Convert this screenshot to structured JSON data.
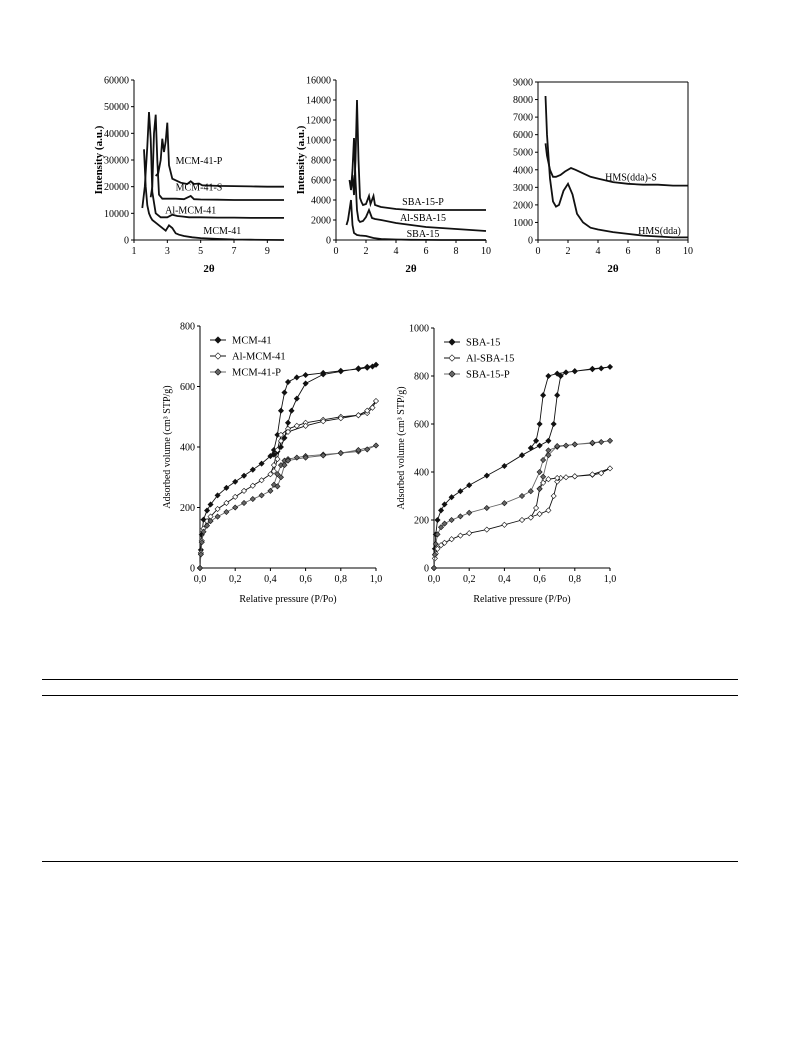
{
  "chart_data": [
    {
      "type": "line",
      "xlabel": "2θ",
      "ylabel": "Intensity (a.u.)",
      "xlim": [
        1,
        10
      ],
      "ylim": [
        0,
        60000
      ],
      "xticks": [
        1,
        3,
        5,
        7,
        9
      ],
      "xtick_labels": [
        "1",
        "3",
        "5",
        "7",
        "9"
      ],
      "yticks": [
        0,
        10000,
        20000,
        30000,
        40000,
        50000,
        60000
      ],
      "ytick_labels": [
        "0",
        "10000",
        "20000",
        "30000",
        "40000",
        "50000",
        "60000"
      ],
      "grid": false,
      "series": [
        {
          "name": "MCM-41-P",
          "label_pos": [
            4.9,
            28500
          ],
          "x": [
            2.3,
            2.45,
            2.6,
            2.7,
            2.8,
            2.9,
            3.0,
            3.1,
            3.3,
            3.8,
            4.2,
            4.4,
            4.6,
            4.9,
            5.1,
            6,
            7,
            8,
            9,
            10
          ],
          "y": [
            24000,
            25000,
            30000,
            38000,
            33000,
            37000,
            44000,
            28000,
            23000,
            21500,
            21000,
            22000,
            21000,
            21200,
            20500,
            20300,
            20200,
            20100,
            20000,
            20000
          ]
        },
        {
          "name": "MCM-41-S",
          "label_pos": [
            4.9,
            18500
          ],
          "x": [
            2.0,
            2.1,
            2.2,
            2.3,
            2.4,
            2.5,
            2.7,
            3.0,
            3.5,
            4.0,
            4.4,
            4.6,
            5.0,
            6,
            7,
            8,
            9,
            10
          ],
          "y": [
            16000,
            20000,
            40000,
            47000,
            30000,
            17000,
            15500,
            15500,
            15500,
            15300,
            16500,
            15300,
            15200,
            15100,
            15000,
            15000,
            15000,
            15000
          ]
        },
        {
          "name": "Al-MCM-41",
          "label_pos": [
            4.4,
            10000
          ],
          "x": [
            1.5,
            1.65,
            1.8,
            1.9,
            2.0,
            2.1,
            2.3,
            2.6,
            3.0,
            3.3,
            3.6,
            3.9,
            4.3,
            5,
            6,
            7,
            8,
            9,
            10
          ],
          "y": [
            12000,
            20000,
            35000,
            48000,
            38000,
            18000,
            10000,
            8500,
            8500,
            9500,
            9000,
            8800,
            8500,
            8500,
            8400,
            8400,
            8300,
            8300,
            8300
          ]
        },
        {
          "name": "MCM-41",
          "label_pos": [
            6.3,
            2200
          ],
          "x": [
            1.6,
            1.7,
            1.8,
            1.9,
            2.0,
            2.1,
            2.3,
            2.6,
            2.9,
            3.1,
            3.3,
            3.5,
            3.7,
            4.0,
            4.5,
            5,
            6,
            7,
            8,
            9,
            10
          ],
          "y": [
            34000,
            20000,
            13000,
            10000,
            8500,
            7500,
            6500,
            5000,
            3500,
            5500,
            4500,
            2500,
            2000,
            1500,
            1000,
            700,
            400,
            200,
            100,
            50,
            0
          ]
        }
      ]
    },
    {
      "type": "line",
      "xlabel": "2θ",
      "ylabel": "Intensity (a.u.)",
      "xlim": [
        0,
        10
      ],
      "ylim": [
        0,
        16000
      ],
      "xticks": [
        0,
        2,
        4,
        6,
        8,
        10
      ],
      "xtick_labels": [
        "0",
        "2",
        "4",
        "6",
        "8",
        "10"
      ],
      "yticks": [
        0,
        2000,
        4000,
        6000,
        8000,
        10000,
        12000,
        14000,
        16000
      ],
      "ytick_labels": [
        "0",
        "2000",
        "4000",
        "6000",
        "8000",
        "10000",
        "12000",
        "14000",
        "16000"
      ],
      "grid": false,
      "series": [
        {
          "name": "SBA-15-P",
          "label_pos": [
            5.8,
            3500
          ],
          "x": [
            1.0,
            1.1,
            1.2,
            1.3,
            1.4,
            1.5,
            1.6,
            1.7,
            1.8,
            2.0,
            2.2,
            2.3,
            2.5,
            2.6,
            2.8,
            3,
            4,
            5,
            6,
            7,
            8,
            9,
            10
          ],
          "y": [
            5000,
            6500,
            4500,
            8000,
            14000,
            8000,
            4200,
            3800,
            3500,
            3600,
            4400,
            3600,
            4400,
            3500,
            3400,
            3300,
            3100,
            3000,
            3000,
            3000,
            3000,
            3000,
            3000
          ]
        },
        {
          "name": "Al-SBA-15",
          "label_pos": [
            5.8,
            1900
          ],
          "x": [
            0.9,
            1.0,
            1.1,
            1.2,
            1.3,
            1.4,
            1.5,
            1.6,
            1.8,
            2.0,
            2.2,
            2.4,
            2.6,
            3,
            4,
            5,
            6,
            7,
            8,
            9,
            10
          ],
          "y": [
            6000,
            5000,
            7000,
            10200,
            6000,
            3000,
            2000,
            1800,
            1900,
            2300,
            3000,
            2200,
            2100,
            2000,
            1700,
            1500,
            1300,
            1200,
            1100,
            1000,
            900
          ]
        },
        {
          "name": "SBA-15",
          "label_pos": [
            5.8,
            300
          ],
          "x": [
            0.7,
            0.8,
            0.9,
            1.0,
            1.1,
            1.2,
            1.4,
            1.6,
            2.0,
            2.5,
            3,
            4,
            5,
            6,
            7,
            8,
            9,
            10
          ],
          "y": [
            1500,
            2000,
            3000,
            4000,
            1500,
            700,
            500,
            450,
            400,
            200,
            100,
            50,
            20,
            10,
            0,
            0,
            0,
            0
          ]
        }
      ]
    },
    {
      "type": "line",
      "xlabel": "2θ",
      "ylabel": "",
      "xlim": [
        0,
        10
      ],
      "ylim": [
        0,
        9000
      ],
      "xticks": [
        0,
        2,
        4,
        6,
        8,
        10
      ],
      "xtick_labels": [
        "0",
        "2",
        "4",
        "6",
        "8",
        "10"
      ],
      "yticks": [
        0,
        1000,
        2000,
        3000,
        4000,
        5000,
        6000,
        7000,
        8000,
        9000
      ],
      "ytick_labels": [
        "0",
        "1000",
        "2000",
        "3000",
        "4000",
        "5000",
        "6000",
        "7000",
        "8000",
        "9000"
      ],
      "grid": false,
      "series": [
        {
          "name": "HMS(dda)-S",
          "label_pos": [
            6.2,
            3400
          ],
          "x": [
            0.5,
            0.6,
            0.8,
            1.0,
            1.2,
            1.5,
            1.8,
            2.2,
            2.5,
            3.0,
            3.5,
            4,
            5,
            6,
            7,
            8,
            9,
            10
          ],
          "y": [
            5500,
            4800,
            4000,
            3600,
            3600,
            3700,
            3900,
            4100,
            4000,
            3800,
            3600,
            3500,
            3300,
            3200,
            3150,
            3150,
            3100,
            3100
          ]
        },
        {
          "name": "HMS(dda)",
          "label_pos": [
            8.1,
            350
          ],
          "x": [
            0.5,
            0.6,
            0.8,
            1.0,
            1.2,
            1.4,
            1.7,
            2.0,
            2.3,
            2.6,
            3.0,
            3.5,
            4,
            5,
            6,
            7,
            8,
            9,
            10
          ],
          "y": [
            8200,
            6000,
            3500,
            2200,
            1900,
            2000,
            2800,
            3200,
            2600,
            1500,
            1000,
            700,
            600,
            450,
            350,
            250,
            200,
            150,
            150
          ]
        }
      ]
    },
    {
      "type": "line",
      "xlabel": "Relative pressure (P/Po)",
      "ylabel": "Adsorbed volume (cm³ STP/g)",
      "xlim": [
        0,
        1
      ],
      "ylim": [
        0,
        800
      ],
      "xticks": [
        0,
        0.2,
        0.4,
        0.6,
        0.8,
        1.0
      ],
      "xtick_labels": [
        "0,0",
        "0,2",
        "0,4",
        "0,6",
        "0,8",
        "1,0"
      ],
      "yticks": [
        0,
        200,
        400,
        600,
        800
      ],
      "ytick_labels": [
        "0",
        "200",
        "400",
        "600",
        "800"
      ],
      "grid": false,
      "legend": "top-left",
      "series": [
        {
          "name": "MCM-41",
          "marker": "filled-diamond",
          "color": "#111111",
          "x": [
            0,
            0.005,
            0.01,
            0.02,
            0.04,
            0.06,
            0.1,
            0.15,
            0.2,
            0.25,
            0.3,
            0.35,
            0.4,
            0.42,
            0.44,
            0.46,
            0.48,
            0.5,
            0.55,
            0.6,
            0.7,
            0.8,
            0.9,
            0.95,
            0.98,
            1.0,
            0.95,
            0.9,
            0.8,
            0.7,
            0.6,
            0.55,
            0.52,
            0.5,
            0.48,
            0.46,
            0.44,
            0.42
          ],
          "y": [
            0,
            60,
            110,
            160,
            190,
            210,
            240,
            265,
            285,
            305,
            325,
            345,
            370,
            390,
            440,
            520,
            580,
            615,
            630,
            638,
            645,
            652,
            658,
            662,
            666,
            672,
            665,
            660,
            650,
            640,
            610,
            560,
            520,
            480,
            430,
            400,
            385,
            375
          ]
        },
        {
          "name": "Al-MCM-41",
          "marker": "open-diamond",
          "color": "#111111",
          "x": [
            0,
            0.005,
            0.01,
            0.02,
            0.04,
            0.06,
            0.1,
            0.15,
            0.2,
            0.25,
            0.3,
            0.35,
            0.4,
            0.42,
            0.44,
            0.46,
            0.5,
            0.55,
            0.6,
            0.7,
            0.8,
            0.9,
            0.95,
            0.98,
            1.0,
            0.95,
            0.9,
            0.8,
            0.7,
            0.6,
            0.5,
            0.46,
            0.44,
            0.42
          ],
          "y": [
            0,
            50,
            90,
            130,
            155,
            170,
            195,
            215,
            235,
            255,
            272,
            290,
            310,
            340,
            390,
            440,
            460,
            470,
            480,
            490,
            500,
            505,
            512,
            530,
            552,
            520,
            505,
            495,
            485,
            470,
            450,
            420,
            360,
            320
          ]
        },
        {
          "name": "MCM-41-P",
          "marker": "grey-diamond",
          "color": "#666666",
          "x": [
            0,
            0.005,
            0.01,
            0.02,
            0.04,
            0.06,
            0.1,
            0.15,
            0.2,
            0.25,
            0.3,
            0.35,
            0.4,
            0.42,
            0.44,
            0.46,
            0.48,
            0.5,
            0.55,
            0.6,
            0.7,
            0.8,
            0.9,
            0.95,
            1.0,
            0.9,
            0.8,
            0.7,
            0.6,
            0.5,
            0.48,
            0.46,
            0.44
          ],
          "y": [
            0,
            45,
            85,
            120,
            140,
            155,
            170,
            185,
            200,
            215,
            228,
            240,
            255,
            275,
            310,
            340,
            355,
            360,
            365,
            370,
            375,
            380,
            385,
            392,
            405,
            390,
            380,
            372,
            365,
            355,
            340,
            300,
            270
          ]
        }
      ]
    },
    {
      "type": "line",
      "xlabel": "Relative pressure (P/Po)",
      "ylabel": "Adsorbed volume (cm³ STP/g)",
      "xlim": [
        0,
        1
      ],
      "ylim": [
        0,
        1000
      ],
      "xticks": [
        0,
        0.2,
        0.4,
        0.6,
        0.8,
        1.0
      ],
      "xtick_labels": [
        "0,0",
        "0,2",
        "0,4",
        "0,6",
        "0,8",
        "1,0"
      ],
      "yticks": [
        0,
        200,
        400,
        600,
        800,
        1000
      ],
      "ytick_labels": [
        "0",
        "200",
        "400",
        "600",
        "800",
        "1000"
      ],
      "grid": false,
      "legend": "top-left",
      "series": [
        {
          "name": "SBA-15",
          "marker": "filled-diamond",
          "color": "#111111",
          "x": [
            0,
            0.005,
            0.01,
            0.02,
            0.04,
            0.06,
            0.1,
            0.15,
            0.2,
            0.3,
            0.4,
            0.5,
            0.6,
            0.65,
            0.68,
            0.7,
            0.72,
            0.75,
            0.8,
            0.9,
            0.95,
            1.0,
            0.9,
            0.8,
            0.7,
            0.65,
            0.62,
            0.6,
            0.58,
            0.55
          ],
          "y": [
            0,
            80,
            140,
            200,
            240,
            265,
            295,
            320,
            345,
            385,
            425,
            470,
            510,
            530,
            600,
            720,
            800,
            815,
            820,
            828,
            832,
            838,
            830,
            820,
            810,
            800,
            720,
            600,
            530,
            500
          ]
        },
        {
          "name": "Al-SBA-15",
          "marker": "open-diamond",
          "color": "#111111",
          "x": [
            0,
            0.005,
            0.01,
            0.02,
            0.04,
            0.06,
            0.1,
            0.15,
            0.2,
            0.3,
            0.4,
            0.5,
            0.6,
            0.65,
            0.68,
            0.7,
            0.72,
            0.75,
            0.8,
            0.9,
            0.95,
            1.0,
            0.9,
            0.8,
            0.7,
            0.65,
            0.62,
            0.6,
            0.58,
            0.55
          ],
          "y": [
            0,
            40,
            60,
            80,
            95,
            105,
            120,
            135,
            145,
            160,
            180,
            200,
            225,
            240,
            300,
            360,
            375,
            378,
            382,
            388,
            395,
            415,
            390,
            382,
            375,
            370,
            355,
            330,
            250,
            210
          ]
        },
        {
          "name": "SBA-15-P",
          "marker": "grey-diamond",
          "color": "#666666",
          "x": [
            0,
            0.005,
            0.01,
            0.02,
            0.04,
            0.06,
            0.1,
            0.15,
            0.2,
            0.3,
            0.4,
            0.5,
            0.55,
            0.6,
            0.62,
            0.65,
            0.7,
            0.75,
            0.8,
            0.9,
            0.95,
            1.0,
            0.9,
            0.8,
            0.7,
            0.65,
            0.62,
            0.6
          ],
          "y": [
            0,
            55,
            100,
            140,
            170,
            185,
            200,
            215,
            230,
            250,
            270,
            300,
            320,
            400,
            450,
            490,
            505,
            510,
            515,
            520,
            525,
            530,
            522,
            515,
            508,
            470,
            380,
            330
          ]
        }
      ]
    }
  ]
}
